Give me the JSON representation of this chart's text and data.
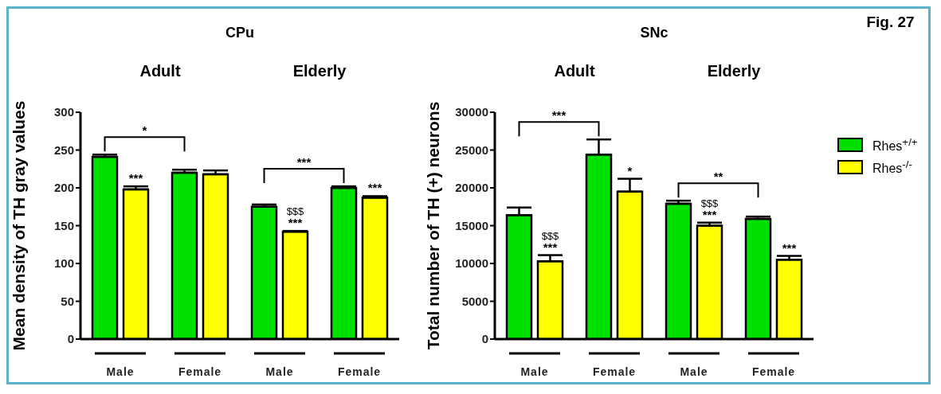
{
  "chart_data": [
    {
      "type": "bar",
      "title": "CPu",
      "ylabel": "Mean density of TH gray values",
      "categories": [
        "Male",
        "Female",
        "Male",
        "Female"
      ],
      "series": [
        {
          "color": "#00e000",
          "values": [
            241,
            220,
            175,
            200
          ],
          "errors": [
            3,
            4,
            3,
            2
          ]
        },
        {
          "color": "#ffff00",
          "values": [
            198,
            218,
            142,
            187
          ],
          "errors": [
            4,
            5,
            1,
            2
          ]
        }
      ],
      "ylim": [
        0,
        300
      ],
      "yticks": [
        0,
        50,
        100,
        150,
        200,
        250,
        300
      ],
      "grid": false,
      "legend": false,
      "annotations": [
        "Adult",
        "Elderly",
        "*",
        "***",
        "***",
        "$$$",
        "***",
        "***"
      ]
    },
    {
      "type": "bar",
      "title": "SNc",
      "ylabel": "Total number of TH (+) neurons",
      "categories": [
        "Male",
        "Female",
        "Male",
        "Female"
      ],
      "series": [
        {
          "name": "Rhes$^{+/+}$",
          "color": "#00e000",
          "values": [
            16400,
            24400,
            17900,
            15900
          ],
          "errors": [
            1000,
            2000,
            400,
            300
          ]
        },
        {
          "name": "Rhes$^{-/-}$",
          "color": "#ffff00",
          "values": [
            10300,
            19500,
            15000,
            10500
          ],
          "errors": [
            800,
            1700,
            400,
            500
          ]
        }
      ],
      "ylim": [
        0,
        30000
      ],
      "yticks": [
        0,
        5000,
        10000,
        15000,
        20000,
        25000,
        30000
      ],
      "grid": false,
      "legend": "right",
      "annotations": [
        "Adult",
        "Elderly",
        "***",
        "***",
        "$$$",
        "*",
        "**",
        "***",
        "$$$",
        "***",
        "Fig. 27"
      ]
    }
  ]
}
